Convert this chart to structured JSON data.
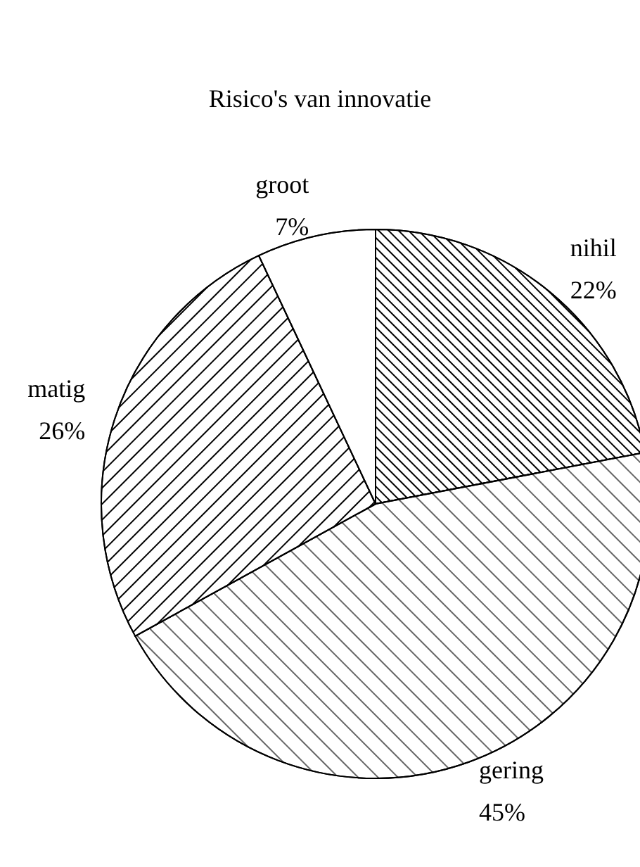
{
  "chart_data": {
    "type": "pie",
    "title": "Risico's van innovatie",
    "categories": [
      "nihil",
      "gering",
      "matig",
      "groot"
    ],
    "values": [
      22,
      45,
      26,
      7
    ],
    "value_labels": [
      "22%",
      "45%",
      "26%",
      "7%"
    ],
    "colors": [
      "#ffffff",
      "#ffffff",
      "#ffffff",
      "#ffffff"
    ],
    "legend": false
  }
}
